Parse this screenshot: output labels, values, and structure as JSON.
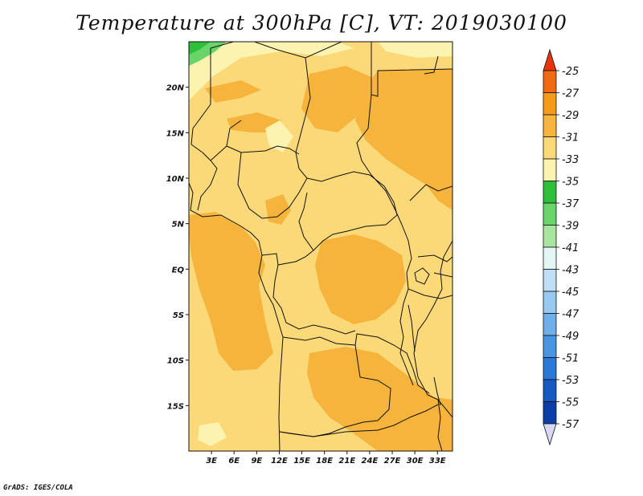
{
  "title": "Temperature at 300hPa [C], VT: 2019030100",
  "credit": "GrADS: IGES/COLA",
  "map": {
    "lon_range": [
      0,
      35
    ],
    "lat_range": [
      -20,
      25
    ],
    "x_ticks": [
      "3E",
      "6E",
      "9E",
      "12E",
      "15E",
      "18E",
      "21E",
      "24E",
      "27E",
      "30E",
      "33E"
    ],
    "y_ticks": [
      "20N",
      "15N",
      "10N",
      "5N",
      "EQ",
      "5S",
      "10S",
      "15S"
    ],
    "dominant_field": "-33 to -31",
    "features": {
      "warm_pockets": "-31 to -29",
      "cool_pockets": "-35 to -33",
      "coldest_corner": "-37 to -35 (north-west)"
    }
  },
  "colorbar": {
    "labels": [
      "-25",
      "-27",
      "-29",
      "-31",
      "-33",
      "-35",
      "-37",
      "-39",
      "-41",
      "-43",
      "-45",
      "-47",
      "-49",
      "-51",
      "-53",
      "-55",
      "-57"
    ],
    "colors": {
      "top_triangle": "#e8340c",
      "segments": [
        "#f06a10",
        "#f59a1a",
        "#f6b43c",
        "#fbd878",
        "#fdf3b0",
        "#2dbf3a",
        "#68d46a",
        "#a8e6a0",
        "#e4f6f4",
        "#bfe0f4",
        "#98c9f0",
        "#6fb0ea",
        "#4896e2",
        "#2a78d8",
        "#1659c2",
        "#0c3ea8"
      ],
      "bottom_triangle": "#d8d8f6",
      "navy": "#0a1c6e"
    }
  }
}
